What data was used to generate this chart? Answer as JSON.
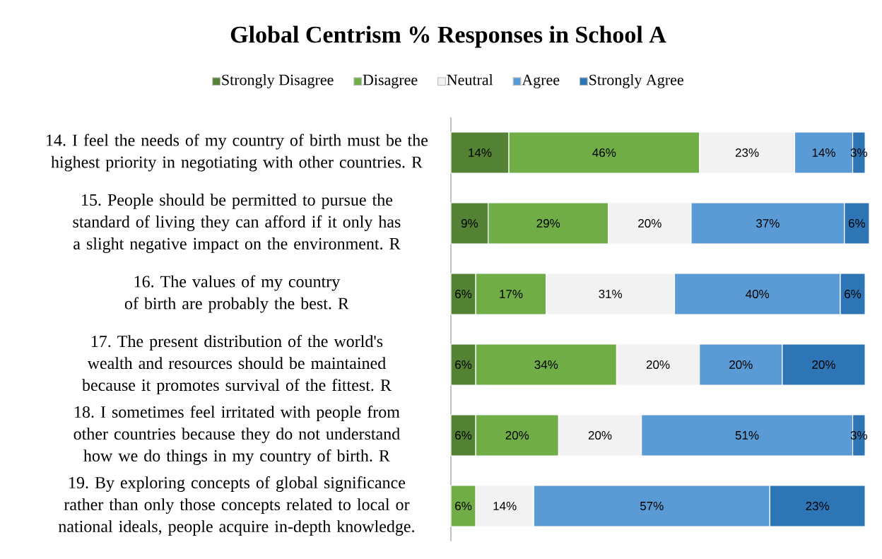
{
  "chart_data": {
    "type": "bar",
    "orientation": "horizontal",
    "stacked": true,
    "title": "Global Centrism % Responses in School A",
    "categories": [
      "14. I feel the needs of my country of birth must be the highest priority in negotiating with other countries. R",
      "15. People should be permitted to pursue the standard of living they can afford if it only has a slight negative impact on the environment. R",
      "16. The values of my country of birth are probably the best. R",
      "17. The present distribution of the world's wealth and resources should be maintained because it promotes survival of the fittest. R",
      "18. I sometimes feel irritated with people from other countries because they do not understand how we do things in my country of birth. R",
      "19. By exploring concepts of global significance rather than only those concepts related to local or national ideals, people acquire in-depth knowledge."
    ],
    "series": [
      {
        "name": "Strongly Disagree",
        "color": "#548235",
        "values": [
          14,
          9,
          6,
          6,
          6,
          null
        ],
        "value_labels": [
          "14%",
          "9%",
          "6%",
          "6%",
          "6%",
          null
        ]
      },
      {
        "name": "Disagree",
        "color": "#70ad47",
        "values": [
          46,
          29,
          17,
          34,
          20,
          6
        ],
        "value_labels": [
          "46%",
          "29%",
          "17%",
          "34%",
          "20%",
          "6%"
        ]
      },
      {
        "name": "Neutral",
        "color": "#f2f2f2",
        "values": [
          23,
          20,
          31,
          20,
          20,
          14
        ],
        "value_labels": [
          "23%",
          "20%",
          "31%",
          "20%",
          "20%",
          "14%"
        ]
      },
      {
        "name": "Agree",
        "color": "#5b9bd5",
        "values": [
          14,
          37,
          40,
          20,
          51,
          57
        ],
        "value_labels": [
          "14%",
          "37%",
          "40%",
          "20%",
          "51%",
          "57%"
        ]
      },
      {
        "name": "Strongly Agree",
        "color": "#2e75b6",
        "values": [
          3,
          6,
          6,
          20,
          3,
          23
        ],
        "value_labels": [
          "3%",
          "6%",
          "6%",
          "20%",
          "3%",
          "23%"
        ]
      }
    ],
    "xlim": [
      0,
      101
    ],
    "tick_labels": "y",
    "legend": "top"
  }
}
